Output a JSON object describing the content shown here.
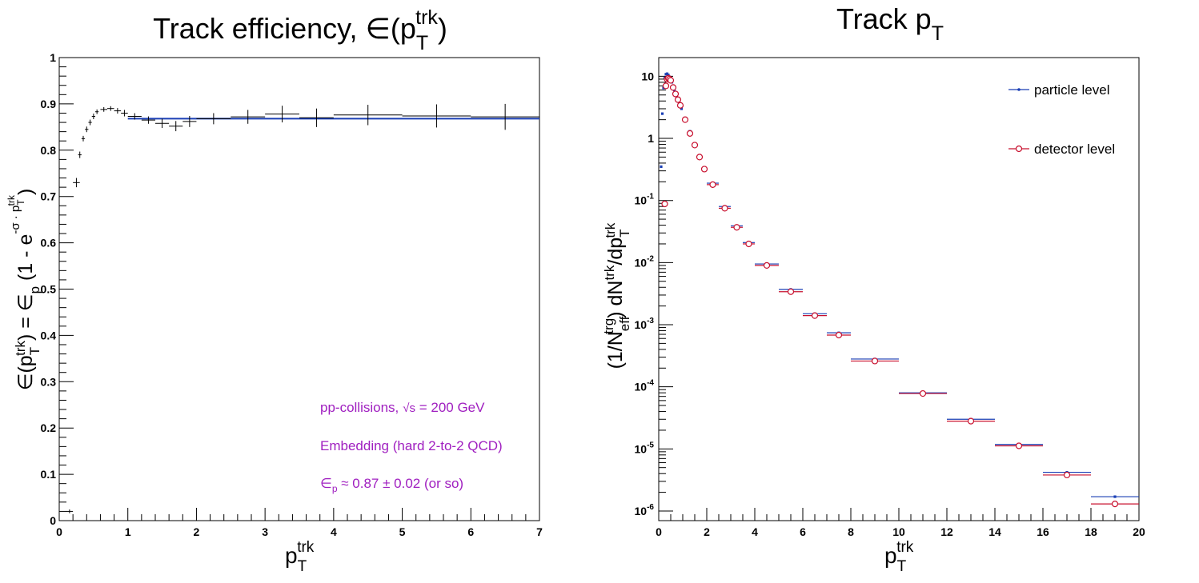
{
  "colors": {
    "axis": "#000000",
    "efficiency_fit": "#1a3fb5",
    "particle": "#1a3fb5",
    "detector": "#c8102e",
    "annotation": "#a020c0"
  },
  "chart_data": [
    {
      "type": "scatter",
      "title_main": "Track efficiency, ∈(p",
      "title_sub": "T",
      "title_sup": "trk",
      "title_close": ")",
      "xlabel_main": "p",
      "xlabel_sub": "T",
      "xlabel_sup": "trk",
      "ylabel": "∈(pTtrk) = ∈p (1 - e^(-σ · pTtrk))",
      "xlim": [
        0,
        7
      ],
      "ylim": [
        0,
        1
      ],
      "xticks": [
        "0",
        "1",
        "2",
        "3",
        "4",
        "5",
        "6",
        "7"
      ],
      "yticks": [
        "0",
        "0.1",
        "0.2",
        "0.3",
        "0.4",
        "0.5",
        "0.6",
        "0.7",
        "0.8",
        "0.9",
        "1"
      ],
      "annotations": {
        "line1_prefix": "pp-collisions,",
        "line1_sqrt": "√s",
        "line1_suffix": " = 200 GeV",
        "line2": "Embedding (hard 2-to-2 QCD)",
        "line3_eps": "∈",
        "line3_sub": "p",
        "line3_rest": " ≈ 0.87 ± 0.02 (or so)"
      },
      "fit": {
        "x": [
          1.0,
          7.0
        ],
        "y": 0.868
      },
      "points": [
        {
          "x": 0.15,
          "y": 0.02,
          "xerr": 0.05,
          "yerr": 0.0
        },
        {
          "x": 0.25,
          "y": 0.73,
          "xerr": 0.05,
          "yerr": 0.01
        },
        {
          "x": 0.3,
          "y": 0.79,
          "xerr": 0.025,
          "yerr": 0.007
        },
        {
          "x": 0.35,
          "y": 0.825,
          "xerr": 0.025,
          "yerr": 0.006
        },
        {
          "x": 0.4,
          "y": 0.845,
          "xerr": 0.025,
          "yerr": 0.006
        },
        {
          "x": 0.45,
          "y": 0.86,
          "xerr": 0.025,
          "yerr": 0.006
        },
        {
          "x": 0.5,
          "y": 0.873,
          "xerr": 0.025,
          "yerr": 0.006
        },
        {
          "x": 0.55,
          "y": 0.883,
          "xerr": 0.025,
          "yerr": 0.005
        },
        {
          "x": 0.65,
          "y": 0.888,
          "xerr": 0.05,
          "yerr": 0.005
        },
        {
          "x": 0.75,
          "y": 0.89,
          "xerr": 0.05,
          "yerr": 0.005
        },
        {
          "x": 0.85,
          "y": 0.885,
          "xerr": 0.05,
          "yerr": 0.006
        },
        {
          "x": 0.95,
          "y": 0.88,
          "xerr": 0.05,
          "yerr": 0.007
        },
        {
          "x": 1.1,
          "y": 0.873,
          "xerr": 0.1,
          "yerr": 0.007
        },
        {
          "x": 1.3,
          "y": 0.865,
          "xerr": 0.1,
          "yerr": 0.008
        },
        {
          "x": 1.5,
          "y": 0.858,
          "xerr": 0.1,
          "yerr": 0.01
        },
        {
          "x": 1.7,
          "y": 0.852,
          "xerr": 0.1,
          "yerr": 0.011
        },
        {
          "x": 1.9,
          "y": 0.862,
          "xerr": 0.1,
          "yerr": 0.012
        },
        {
          "x": 2.25,
          "y": 0.868,
          "xerr": 0.25,
          "yerr": 0.012
        },
        {
          "x": 2.75,
          "y": 0.872,
          "xerr": 0.25,
          "yerr": 0.015
        },
        {
          "x": 3.25,
          "y": 0.878,
          "xerr": 0.25,
          "yerr": 0.018
        },
        {
          "x": 3.75,
          "y": 0.87,
          "xerr": 0.25,
          "yerr": 0.02
        },
        {
          "x": 4.5,
          "y": 0.876,
          "xerr": 0.5,
          "yerr": 0.022
        },
        {
          "x": 5.5,
          "y": 0.874,
          "xerr": 0.5,
          "yerr": 0.025
        },
        {
          "x": 6.5,
          "y": 0.872,
          "xerr": 0.5,
          "yerr": 0.028
        }
      ]
    },
    {
      "type": "scatter",
      "yscale": "log",
      "title_main": "Track p",
      "title_sub": "T",
      "xlabel_main": "p",
      "xlabel_sub": "T",
      "xlabel_sup": "trk",
      "ylabel": "(1/Neff^trg) dN^trk/dpT^trk",
      "xlim": [
        0,
        20
      ],
      "ylim": [
        7e-07,
        20
      ],
      "xticks": [
        "0",
        "2",
        "4",
        "6",
        "8",
        "10",
        "12",
        "14",
        "16",
        "18",
        "20"
      ],
      "yticks": [
        {
          "base": "10",
          "exp": "-6",
          "v": 1e-06
        },
        {
          "base": "10",
          "exp": "-5",
          "v": 1e-05
        },
        {
          "base": "10",
          "exp": "-4",
          "v": 0.0001
        },
        {
          "base": "10",
          "exp": "-3",
          "v": 0.001
        },
        {
          "base": "10",
          "exp": "-2",
          "v": 0.01
        },
        {
          "base": "10",
          "exp": "-1",
          "v": 0.1
        },
        {
          "base": "1",
          "exp": "",
          "v": 1
        },
        {
          "base": "10",
          "exp": "",
          "v": 10
        }
      ],
      "legend_placement": "top-right",
      "series": [
        {
          "name": "particle level",
          "marker": "dot",
          "points": [
            {
              "x": 0.1,
              "y": 0.35,
              "xerr": 0.05
            },
            {
              "x": 0.15,
              "y": 2.5,
              "xerr": 0.05
            },
            {
              "x": 0.2,
              "y": 6.5,
              "xerr": 0.05
            },
            {
              "x": 0.25,
              "y": 9.5,
              "xerr": 0.05
            },
            {
              "x": 0.3,
              "y": 10.8,
              "xerr": 0.05
            },
            {
              "x": 0.35,
              "y": 11.0,
              "xerr": 0.05
            },
            {
              "x": 0.4,
              "y": 10.5,
              "xerr": 0.05
            },
            {
              "x": 0.45,
              "y": 9.8,
              "xerr": 0.05
            },
            {
              "x": 0.55,
              "y": 8.0,
              "xerr": 0.05
            },
            {
              "x": 0.65,
              "y": 6.0,
              "xerr": 0.05
            },
            {
              "x": 0.75,
              "y": 4.7,
              "xerr": 0.05
            },
            {
              "x": 0.85,
              "y": 3.8,
              "xerr": 0.05
            },
            {
              "x": 0.95,
              "y": 3.0,
              "xerr": 0.05
            },
            {
              "x": 1.1,
              "y": 2.1,
              "xerr": 0.1
            },
            {
              "x": 1.3,
              "y": 1.3,
              "xerr": 0.1
            },
            {
              "x": 1.5,
              "y": 0.82,
              "xerr": 0.1
            },
            {
              "x": 1.7,
              "y": 0.52,
              "xerr": 0.1
            },
            {
              "x": 1.9,
              "y": 0.34,
              "xerr": 0.1
            },
            {
              "x": 2.25,
              "y": 0.19,
              "xerr": 0.25
            },
            {
              "x": 2.75,
              "y": 0.08,
              "xerr": 0.25
            },
            {
              "x": 3.25,
              "y": 0.039,
              "xerr": 0.25
            },
            {
              "x": 3.75,
              "y": 0.021,
              "xerr": 0.25
            },
            {
              "x": 4.5,
              "y": 0.0095,
              "xerr": 0.5
            },
            {
              "x": 5.5,
              "y": 0.0037,
              "xerr": 0.5
            },
            {
              "x": 6.5,
              "y": 0.0015,
              "xerr": 0.5
            },
            {
              "x": 7.5,
              "y": 0.00074,
              "xerr": 0.5
            },
            {
              "x": 9.0,
              "y": 0.00028,
              "xerr": 1.0
            },
            {
              "x": 11.0,
              "y": 8e-05,
              "xerr": 1.0
            },
            {
              "x": 13.0,
              "y": 3e-05,
              "xerr": 1.0
            },
            {
              "x": 15.0,
              "y": 1.18e-05,
              "xerr": 1.0
            },
            {
              "x": 17.0,
              "y": 4.2e-06,
              "xerr": 1.0
            },
            {
              "x": 19.0,
              "y": 1.7e-06,
              "xerr": 1.0
            }
          ]
        },
        {
          "name": "detector level",
          "marker": "open-circle",
          "points": [
            {
              "x": 0.25,
              "y": 0.088,
              "xerr": 0.05
            },
            {
              "x": 0.3,
              "y": 7.0,
              "xerr": 0.05
            },
            {
              "x": 0.35,
              "y": 9.0,
              "xerr": 0.05
            },
            {
              "x": 0.4,
              "y": 9.3,
              "xerr": 0.05
            },
            {
              "x": 0.45,
              "y": 9.0,
              "xerr": 0.05
            },
            {
              "x": 0.5,
              "y": 8.6,
              "xerr": 0.05
            },
            {
              "x": 0.6,
              "y": 6.6,
              "xerr": 0.05
            },
            {
              "x": 0.7,
              "y": 5.2,
              "xerr": 0.05
            },
            {
              "x": 0.8,
              "y": 4.2,
              "xerr": 0.05
            },
            {
              "x": 0.9,
              "y": 3.4,
              "xerr": 0.05
            },
            {
              "x": 1.1,
              "y": 2.0,
              "xerr": 0.1
            },
            {
              "x": 1.3,
              "y": 1.2,
              "xerr": 0.1
            },
            {
              "x": 1.5,
              "y": 0.78,
              "xerr": 0.1
            },
            {
              "x": 1.7,
              "y": 0.5,
              "xerr": 0.1
            },
            {
              "x": 1.9,
              "y": 0.32,
              "xerr": 0.1
            },
            {
              "x": 2.25,
              "y": 0.18,
              "xerr": 0.25
            },
            {
              "x": 2.75,
              "y": 0.075,
              "xerr": 0.25
            },
            {
              "x": 3.25,
              "y": 0.037,
              "xerr": 0.25
            },
            {
              "x": 3.75,
              "y": 0.02,
              "xerr": 0.25
            },
            {
              "x": 4.5,
              "y": 0.009,
              "xerr": 0.5
            },
            {
              "x": 5.5,
              "y": 0.0034,
              "xerr": 0.5
            },
            {
              "x": 6.5,
              "y": 0.0014,
              "xerr": 0.5
            },
            {
              "x": 7.5,
              "y": 0.00068,
              "xerr": 0.5
            },
            {
              "x": 9.0,
              "y": 0.00026,
              "xerr": 1.0
            },
            {
              "x": 11.0,
              "y": 7.8e-05,
              "xerr": 1.0
            },
            {
              "x": 13.0,
              "y": 2.8e-05,
              "xerr": 1.0
            },
            {
              "x": 15.0,
              "y": 1.12e-05,
              "xerr": 1.0
            },
            {
              "x": 17.0,
              "y": 3.8e-06,
              "xerr": 1.0
            },
            {
              "x": 19.0,
              "y": 1.3e-06,
              "xerr": 1.0
            }
          ]
        }
      ]
    }
  ]
}
